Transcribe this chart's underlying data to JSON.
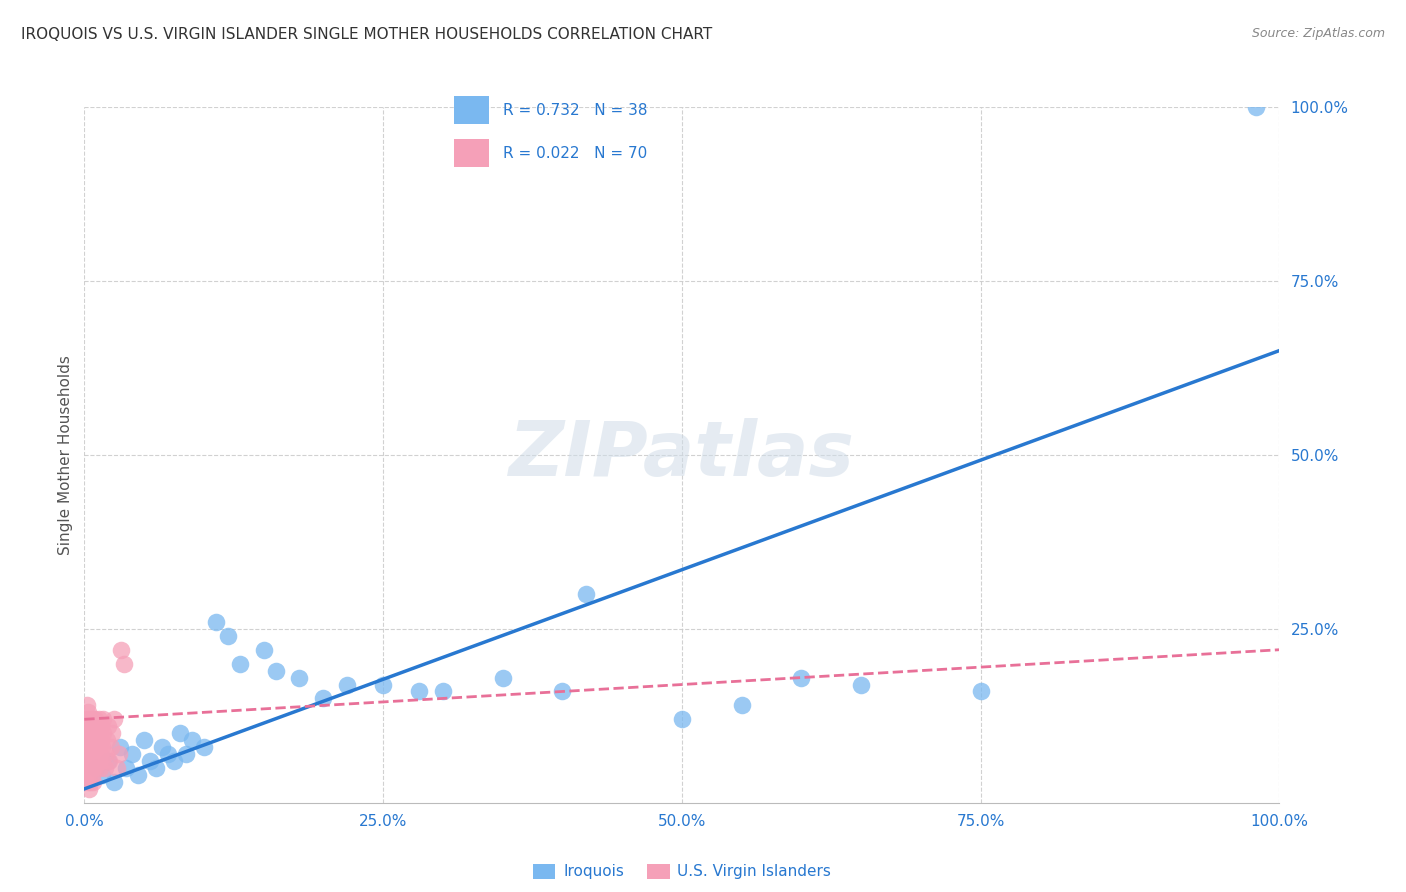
{
  "title": "IROQUOIS VS U.S. VIRGIN ISLANDER SINGLE MOTHER HOUSEHOLDS CORRELATION CHART",
  "source": "Source: ZipAtlas.com",
  "ylabel": "Single Mother Households",
  "xlim": [
    0,
    1.0
  ],
  "ylim": [
    0,
    1.0
  ],
  "xtick_labels": [
    "0.0%",
    "25.0%",
    "50.0%",
    "75.0%",
    "100.0%"
  ],
  "xtick_vals": [
    0.0,
    0.25,
    0.5,
    0.75,
    1.0
  ],
  "ytick_labels": [
    "25.0%",
    "50.0%",
    "75.0%",
    "100.0%"
  ],
  "ytick_vals": [
    0.25,
    0.5,
    0.75,
    1.0
  ],
  "blue_color": "#7ab8f0",
  "pink_color": "#f5a0b8",
  "blue_line_color": "#2878d0",
  "pink_line_color": "#e87098",
  "legend_text_color": "#2878d0",
  "watermark_color": "#d0dce8",
  "title_color": "#333333",
  "source_color": "#888888",
  "ylabel_color": "#555555",
  "watermark": "ZIPatlas",
  "legend1_R": "0.732",
  "legend1_N": "38",
  "legend2_R": "0.022",
  "legend2_N": "70",
  "iroquois_label": "Iroquois",
  "vi_label": "U.S. Virgin Islanders",
  "blue_line_x": [
    0.0,
    1.0
  ],
  "blue_line_y": [
    0.02,
    0.65
  ],
  "pink_line_x": [
    0.0,
    1.0
  ],
  "pink_line_y": [
    0.12,
    0.22
  ],
  "iroquois_x": [
    0.01,
    0.015,
    0.02,
    0.025,
    0.03,
    0.035,
    0.04,
    0.045,
    0.05,
    0.055,
    0.06,
    0.065,
    0.07,
    0.075,
    0.08,
    0.085,
    0.09,
    0.1,
    0.11,
    0.12,
    0.13,
    0.15,
    0.16,
    0.18,
    0.2,
    0.22,
    0.25,
    0.28,
    0.3,
    0.35,
    0.4,
    0.42,
    0.5,
    0.55,
    0.6,
    0.65,
    0.75,
    0.98
  ],
  "iroquois_y": [
    0.05,
    0.04,
    0.06,
    0.03,
    0.08,
    0.05,
    0.07,
    0.04,
    0.09,
    0.06,
    0.05,
    0.08,
    0.07,
    0.06,
    0.1,
    0.07,
    0.09,
    0.08,
    0.26,
    0.24,
    0.2,
    0.22,
    0.19,
    0.18,
    0.15,
    0.17,
    0.17,
    0.16,
    0.16,
    0.18,
    0.16,
    0.3,
    0.12,
    0.14,
    0.18,
    0.17,
    0.16,
    1.0
  ],
  "vi_x": [
    0.001,
    0.001,
    0.001,
    0.001,
    0.002,
    0.002,
    0.002,
    0.002,
    0.002,
    0.003,
    0.003,
    0.003,
    0.003,
    0.003,
    0.004,
    0.004,
    0.004,
    0.004,
    0.005,
    0.005,
    0.005,
    0.005,
    0.006,
    0.006,
    0.006,
    0.006,
    0.007,
    0.007,
    0.007,
    0.007,
    0.008,
    0.008,
    0.008,
    0.008,
    0.009,
    0.009,
    0.009,
    0.01,
    0.01,
    0.01,
    0.011,
    0.011,
    0.012,
    0.012,
    0.013,
    0.013,
    0.014,
    0.014,
    0.015,
    0.015,
    0.016,
    0.016,
    0.017,
    0.018,
    0.019,
    0.02,
    0.021,
    0.022,
    0.023,
    0.025,
    0.027,
    0.029,
    0.031,
    0.033,
    0.002,
    0.003,
    0.004,
    0.005,
    0.006,
    0.007
  ],
  "vi_y": [
    0.05,
    0.08,
    0.1,
    0.12,
    0.06,
    0.09,
    0.11,
    0.14,
    0.07,
    0.08,
    0.1,
    0.13,
    0.05,
    0.07,
    0.09,
    0.11,
    0.06,
    0.08,
    0.1,
    0.12,
    0.05,
    0.07,
    0.09,
    0.11,
    0.06,
    0.08,
    0.1,
    0.12,
    0.05,
    0.07,
    0.09,
    0.11,
    0.06,
    0.08,
    0.1,
    0.12,
    0.05,
    0.07,
    0.09,
    0.11,
    0.06,
    0.08,
    0.1,
    0.12,
    0.05,
    0.07,
    0.09,
    0.11,
    0.06,
    0.08,
    0.1,
    0.12,
    0.05,
    0.07,
    0.09,
    0.11,
    0.06,
    0.08,
    0.1,
    0.12,
    0.05,
    0.07,
    0.22,
    0.2,
    0.04,
    0.03,
    0.02,
    0.03,
    0.04,
    0.03
  ]
}
